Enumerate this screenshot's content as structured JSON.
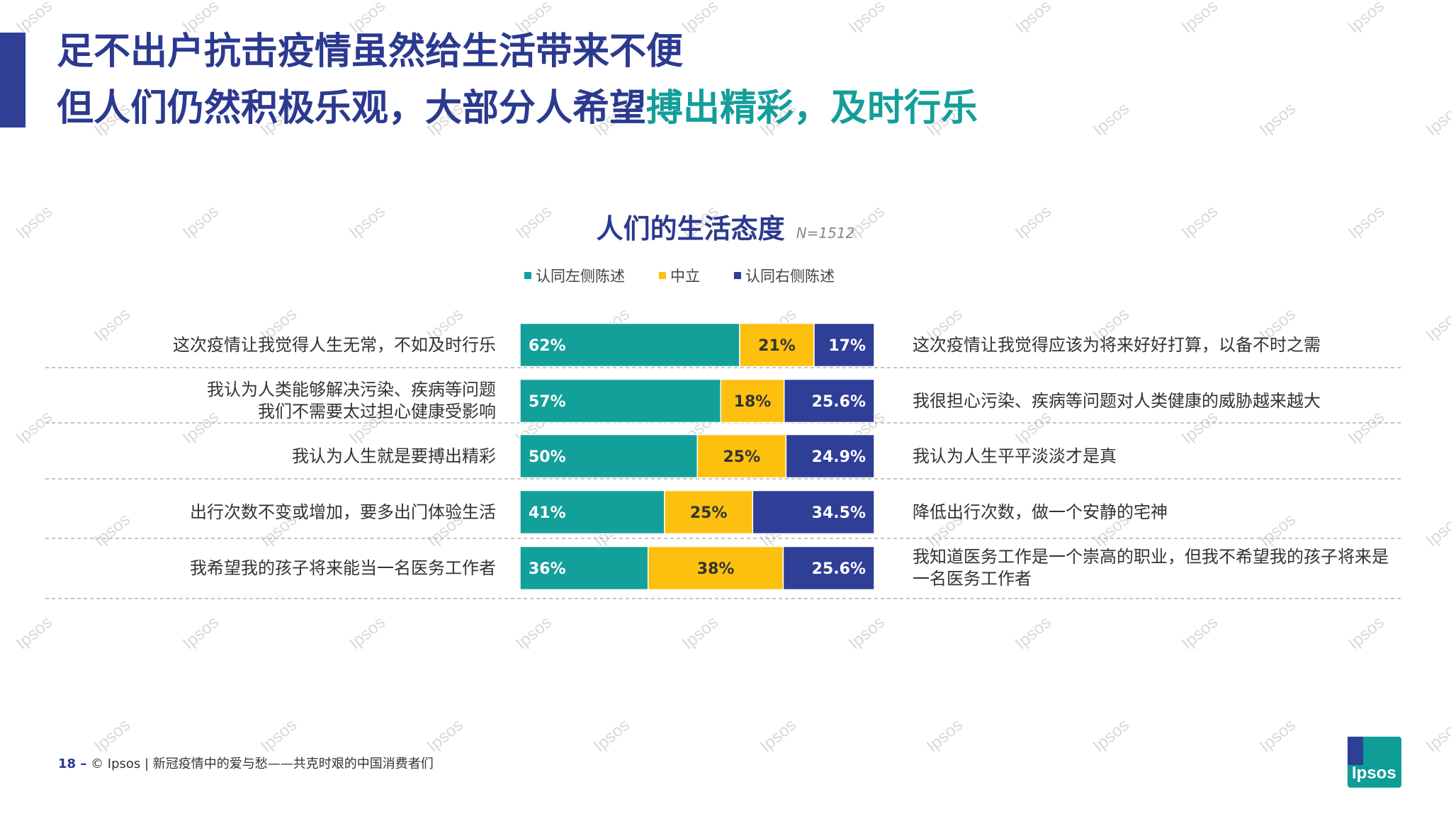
{
  "header": {
    "title_line1": "足不出户抗击疫情虽然给生活带来不便",
    "title_line2_main": "但人们仍然积极乐观，大部分人希望",
    "title_line2_highlight": "搏出精彩，及时行乐"
  },
  "chart_title": "人们的生活态度",
  "sample_size": "N=1512",
  "colors": {
    "left": "#13a09b",
    "neutral": "#fdc00f",
    "right": "#2f3e96"
  },
  "chart_data": {
    "type": "bar",
    "stacked": true,
    "orientation": "horizontal",
    "title": "人们的生活态度",
    "xlim": [
      0,
      100
    ],
    "grid": false,
    "legend_position": "top",
    "series": [
      {
        "name": "认同左侧陈述",
        "values": [
          62,
          57,
          50,
          41,
          36
        ],
        "labels": [
          "62%",
          "57%",
          "50%",
          "41%",
          "36%"
        ]
      },
      {
        "name": "中立",
        "values": [
          21,
          18,
          25,
          25,
          38
        ],
        "labels": [
          "21%",
          "18%",
          "25%",
          "25%",
          "38%"
        ]
      },
      {
        "name": "认同右侧陈述",
        "values": [
          17,
          25.6,
          24.9,
          34.5,
          25.6
        ],
        "labels": [
          "17%",
          "25.6%",
          "24.9%",
          "34.5%",
          "25.6%"
        ]
      }
    ],
    "left_statements": [
      "这次疫情让我觉得人生无常，不如及时行乐",
      "我认为人类能够解决污染、疾病等问题\n我们不需要太过担心健康受影响",
      "我认为人生就是要搏出精彩",
      "出行次数不变或增加，要多出门体验生活",
      "我希望我的孩子将来能当一名医务工作者"
    ],
    "right_statements": [
      "这次疫情让我觉得应该为将来好好打算，以备不时之需",
      "我很担心污染、疾病等问题对人类健康的威胁越来越大",
      "我认为人生平平淡淡才是真",
      "降低出行次数，做一个安静的宅神",
      "我知道医务工作是一个崇高的职业，但我不希望我的孩子将来是一名医务工作者"
    ]
  },
  "footer": {
    "page_number": "18 –",
    "text": "© Ipsos | 新冠疫情中的爱与愁——共克时艰的中国消费者们"
  },
  "logo_text": "Ipsos",
  "watermark_text": "Ipsos"
}
